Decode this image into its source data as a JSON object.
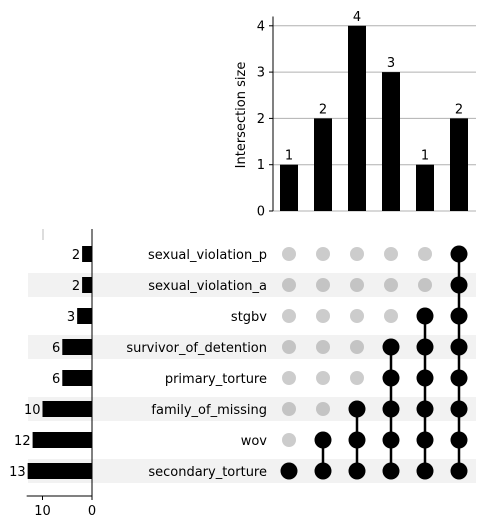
{
  "chart_data": {
    "type": "upset",
    "sets": [
      {
        "name": "sexual_violation_p",
        "size": 2
      },
      {
        "name": "sexual_violation_a",
        "size": 2
      },
      {
        "name": "stgbv",
        "size": 3
      },
      {
        "name": "survivor_of_detention",
        "size": 6
      },
      {
        "name": "primary_torture",
        "size": 6
      },
      {
        "name": "family_of_missing",
        "size": 10
      },
      {
        "name": "wov",
        "size": 12
      },
      {
        "name": "secondary_torture",
        "size": 13
      }
    ],
    "intersections": [
      {
        "value": 1,
        "members": [
          "secondary_torture"
        ]
      },
      {
        "value": 2,
        "members": [
          "wov",
          "secondary_torture"
        ]
      },
      {
        "value": 4,
        "members": [
          "family_of_missing",
          "wov",
          "secondary_torture"
        ]
      },
      {
        "value": 3,
        "members": [
          "survivor_of_detention",
          "primary_torture",
          "family_of_missing",
          "wov",
          "secondary_torture"
        ]
      },
      {
        "value": 1,
        "members": [
          "stgbv",
          "survivor_of_detention",
          "primary_torture",
          "family_of_missing",
          "wov",
          "secondary_torture"
        ]
      },
      {
        "value": 2,
        "members": [
          "sexual_violation_p",
          "sexual_violation_a",
          "stgbv",
          "survivor_of_detention",
          "primary_torture",
          "family_of_missing",
          "wov",
          "secondary_torture"
        ]
      }
    ],
    "intersection_axis": {
      "label": "Intersection size",
      "ticks": [
        0,
        1,
        2,
        3,
        4
      ],
      "range": [
        0,
        4.2
      ]
    },
    "set_size_axis": {
      "ticks": [
        10,
        0
      ],
      "range": [
        0,
        13.2
      ]
    },
    "grid": true,
    "colors": {
      "bar": "#000000",
      "dot_active": "#000000",
      "dot_inactive": "#cccccc",
      "row_shade": "#f2f2f2",
      "grid": "#b0b0b0"
    }
  }
}
